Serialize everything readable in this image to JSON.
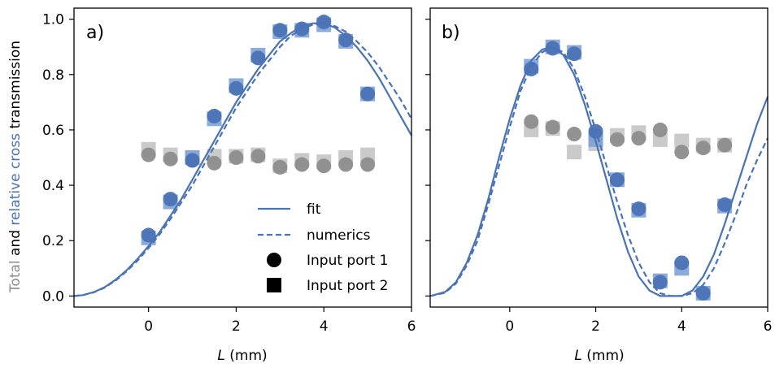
{
  "colors": {
    "blue": "#4a72b5",
    "blue_light": "#7ea2d6",
    "gray": "#8c8c8c",
    "gray_light": "#c4c4c4"
  },
  "ylabel": {
    "part1": "Total",
    "part2": " and ",
    "part3": "relative cross",
    "part4": " transmission"
  },
  "xlabel": {
    "italic": "L",
    "unit": " (mm)"
  },
  "legend": {
    "fit": "fit",
    "numerics": "numerics",
    "port1": "Input port 1",
    "port2": "Input port 2"
  },
  "chart_data": [
    {
      "type": "scatter",
      "panel_label": "a)",
      "xlim": [
        -1.7,
        6.0
      ],
      "ylim": [
        -0.04,
        1.04
      ],
      "xticks": [
        "0",
        "2",
        "4",
        "6"
      ],
      "yticks": [
        "0.0",
        "0.2",
        "0.4",
        "0.6",
        "0.8",
        "1.0"
      ],
      "xlabel": "L (mm)",
      "ylabel": "Total and relative cross transmission",
      "legend_position": "lower-right",
      "series": [
        {
          "name": "fit",
          "kind": "line",
          "style": "solid",
          "color": "#4a72b5",
          "x": [
            -1.7,
            -1.5,
            -1.25,
            -1.0,
            -0.75,
            -0.5,
            -0.25,
            0.0,
            0.25,
            0.5,
            0.75,
            1.0,
            1.25,
            1.5,
            1.75,
            2.0,
            2.25,
            2.5,
            2.75,
            3.0,
            3.25,
            3.5,
            3.75,
            4.0,
            4.25,
            4.5,
            4.75,
            5.0,
            5.25,
            5.5,
            5.75,
            6.0
          ],
          "y": [
            0.0,
            0.003,
            0.014,
            0.032,
            0.059,
            0.093,
            0.134,
            0.18,
            0.23,
            0.29,
            0.35,
            0.42,
            0.49,
            0.56,
            0.63,
            0.7,
            0.76,
            0.82,
            0.87,
            0.92,
            0.95,
            0.975,
            0.985,
            0.985,
            0.97,
            0.94,
            0.9,
            0.85,
            0.79,
            0.72,
            0.65,
            0.58
          ]
        },
        {
          "name": "numerics",
          "kind": "line",
          "style": "dashed",
          "color": "#4a72b5",
          "x": [
            -1.7,
            -1.5,
            -1.25,
            -1.0,
            -0.75,
            -0.5,
            -0.25,
            0.0,
            0.25,
            0.5,
            0.75,
            1.0,
            1.25,
            1.5,
            1.75,
            2.0,
            2.25,
            2.5,
            2.75,
            3.0,
            3.25,
            3.5,
            3.75,
            4.0,
            4.25,
            4.5,
            4.75,
            5.0,
            5.25,
            5.5,
            5.75,
            6.0
          ],
          "y": [
            0.0,
            0.003,
            0.013,
            0.03,
            0.056,
            0.089,
            0.128,
            0.173,
            0.222,
            0.278,
            0.338,
            0.4,
            0.47,
            0.54,
            0.61,
            0.68,
            0.74,
            0.8,
            0.85,
            0.9,
            0.94,
            0.965,
            0.98,
            0.985,
            0.975,
            0.955,
            0.92,
            0.88,
            0.83,
            0.77,
            0.71,
            0.64
          ]
        },
        {
          "name": "Input port 1 cross",
          "kind": "circle",
          "color": "#4a72b5",
          "x": [
            0,
            0.5,
            1,
            1.5,
            2,
            2.5,
            3,
            3.5,
            4,
            4.5,
            5
          ],
          "y": [
            0.22,
            0.35,
            0.49,
            0.65,
            0.75,
            0.86,
            0.96,
            0.965,
            0.99,
            0.925,
            0.73
          ]
        },
        {
          "name": "Input port 2 cross",
          "kind": "square",
          "color": "#7ea2d6",
          "x": [
            0,
            0.5,
            1,
            1.5,
            2,
            2.5,
            3,
            3.5,
            4,
            4.5,
            5
          ],
          "y": [
            0.21,
            0.34,
            0.5,
            0.64,
            0.76,
            0.87,
            0.955,
            0.96,
            0.98,
            0.92,
            0.73
          ]
        },
        {
          "name": "Input port 1 total",
          "kind": "circle",
          "color": "#8c8c8c",
          "x": [
            0,
            0.5,
            1,
            1.5,
            2,
            2.5,
            3,
            3.5,
            4,
            4.5,
            5
          ],
          "y": [
            0.51,
            0.495,
            0.49,
            0.48,
            0.5,
            0.505,
            0.465,
            0.475,
            0.47,
            0.475,
            0.475
          ]
        },
        {
          "name": "Input port 2 total",
          "kind": "square",
          "color": "#c4c4c4",
          "x": [
            0,
            0.5,
            1,
            1.5,
            2,
            2.5,
            3,
            3.5,
            4,
            4.5,
            5
          ],
          "y": [
            0.53,
            0.51,
            0.5,
            0.505,
            0.505,
            0.51,
            0.47,
            0.49,
            0.485,
            0.5,
            0.51
          ]
        }
      ]
    },
    {
      "type": "scatter",
      "panel_label": "b)",
      "xlim": [
        -1.85,
        6.0
      ],
      "ylim": [
        -0.04,
        1.04
      ],
      "xticks": [
        "0",
        "2",
        "4",
        "6"
      ],
      "yticks": [],
      "xlabel": "L (mm)",
      "series": [
        {
          "name": "fit",
          "kind": "line",
          "style": "solid",
          "color": "#4a72b5",
          "x": [
            -1.85,
            -1.5,
            -1.25,
            -1.0,
            -0.75,
            -0.5,
            -0.25,
            0.0,
            0.25,
            0.5,
            0.75,
            1.0,
            1.25,
            1.5,
            1.75,
            2.0,
            2.25,
            2.5,
            2.75,
            3.0,
            3.25,
            3.5,
            3.75,
            4.0,
            4.25,
            4.5,
            4.75,
            5.0,
            5.25,
            5.5,
            5.75,
            6.0
          ],
          "y": [
            0.0,
            0.015,
            0.05,
            0.12,
            0.22,
            0.35,
            0.5,
            0.64,
            0.76,
            0.85,
            0.89,
            0.9,
            0.87,
            0.8,
            0.69,
            0.56,
            0.42,
            0.28,
            0.16,
            0.07,
            0.02,
            0.0,
            0.0,
            0.0,
            0.02,
            0.07,
            0.15,
            0.26,
            0.38,
            0.5,
            0.62,
            0.72
          ]
        },
        {
          "name": "numerics",
          "kind": "line",
          "style": "dashed",
          "color": "#4a72b5",
          "x": [
            -1.85,
            -1.5,
            -1.25,
            -1.0,
            -0.75,
            -0.5,
            -0.25,
            0.0,
            0.25,
            0.5,
            0.75,
            1.0,
            1.25,
            1.5,
            1.75,
            2.0,
            2.25,
            2.5,
            2.75,
            3.0,
            3.25,
            3.5,
            3.75,
            4.0,
            4.25,
            4.5,
            4.75,
            5.0,
            5.25,
            5.5,
            5.75,
            6.0
          ],
          "y": [
            0.0,
            0.012,
            0.045,
            0.11,
            0.2,
            0.33,
            0.47,
            0.61,
            0.74,
            0.83,
            0.88,
            0.9,
            0.88,
            0.82,
            0.72,
            0.6,
            0.47,
            0.34,
            0.22,
            0.12,
            0.05,
            0.01,
            0.0,
            0.0,
            0.01,
            0.04,
            0.1,
            0.19,
            0.29,
            0.4,
            0.49,
            0.57
          ]
        },
        {
          "name": "Input port 1 cross",
          "kind": "circle",
          "color": "#4a72b5",
          "x": [
            0.5,
            1,
            1.5,
            2,
            2.5,
            3,
            3.5,
            4,
            4.5,
            5
          ],
          "y": [
            0.82,
            0.895,
            0.875,
            0.595,
            0.42,
            0.315,
            0.05,
            0.12,
            0.01,
            0.33
          ]
        },
        {
          "name": "Input port 2 cross",
          "kind": "square",
          "color": "#7ea2d6",
          "x": [
            0.5,
            1,
            1.5,
            2,
            2.5,
            3,
            3.5,
            4,
            4.5,
            5
          ],
          "y": [
            0.83,
            0.9,
            0.88,
            0.565,
            0.42,
            0.31,
            0.055,
            0.1,
            0.01,
            0.325
          ]
        },
        {
          "name": "Input port 1 total",
          "kind": "circle",
          "color": "#8c8c8c",
          "x": [
            0.5,
            1,
            1.5,
            2,
            2.5,
            3,
            3.5,
            4,
            4.5,
            5
          ],
          "y": [
            0.63,
            0.61,
            0.585,
            0.58,
            0.565,
            0.57,
            0.6,
            0.52,
            0.535,
            0.545
          ]
        },
        {
          "name": "Input port 2 total",
          "kind": "square",
          "color": "#c4c4c4",
          "x": [
            0.5,
            1,
            1.5,
            2,
            2.5,
            3,
            3.5,
            4,
            4.5,
            5
          ],
          "y": [
            0.6,
            0.605,
            0.52,
            0.55,
            0.58,
            0.59,
            0.565,
            0.56,
            0.545,
            0.545
          ]
        }
      ]
    }
  ]
}
